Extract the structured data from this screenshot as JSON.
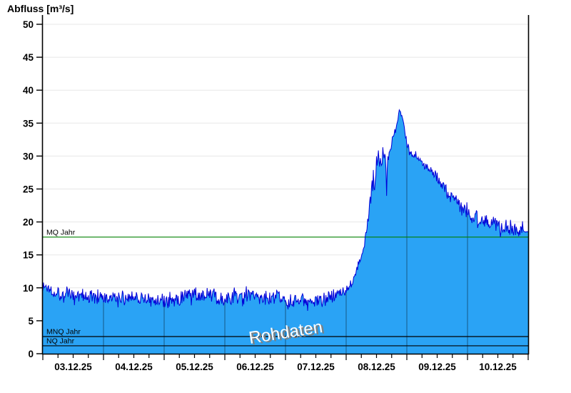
{
  "title": "Abfluss [m³/s]",
  "watermark": "Rohdaten",
  "colors": {
    "background": "#ffffff",
    "area_fill": "#2AA3F5",
    "data_line": "#0000D8",
    "mq_line": "#008000",
    "reference_line": "#000000",
    "grid_horizontal": "#E7E7E7",
    "day_grid_over_area": "rgba(0,0,0,0.45)",
    "axis": "#000000",
    "tick_label": "#000000",
    "watermark_fill": "#FFFFFF",
    "watermark_shadow": "#7E7E7E"
  },
  "chart_data": {
    "type": "area",
    "title": "Abfluss [m³/s]",
    "ylabel": "Abfluss [m³/s]",
    "xlabel": "",
    "ylim": [
      0,
      50
    ],
    "yticks": [
      "0",
      "5",
      "10",
      "15",
      "20",
      "25",
      "30",
      "35",
      "40",
      "45",
      "50"
    ],
    "grid": "horizontal major gridlines on; vertical day boundaries drawn only over filled area",
    "legend": "none",
    "x_day_labels": [
      "03.12.25",
      "04.12.25",
      "05.12.25",
      "06.12.25",
      "07.12.25",
      "08.12.25",
      "09.12.25",
      "10.12.25"
    ],
    "x_range_hours": [
      0,
      192
    ],
    "x_minor_tick_hours": 6,
    "x_major_tick_hours": 24,
    "reference_lines": [
      {
        "label": "MQ Jahr",
        "value": 17.7,
        "color": "#008000"
      },
      {
        "label": "MNQ Jahr",
        "value": 2.6,
        "color": "#000000"
      },
      {
        "label": "NQ Jahr",
        "value": 1.2,
        "color": "#000000"
      }
    ],
    "series": [
      {
        "name": "Rohdaten",
        "unit": "m³/s",
        "sample_minutes": 15,
        "profile_hours_values": [
          [
            0,
            10.2
          ],
          [
            2,
            10.0
          ],
          [
            4,
            9.6
          ],
          [
            6,
            9.3
          ],
          [
            8,
            9.2
          ],
          [
            10,
            9.0
          ],
          [
            12,
            8.8
          ],
          [
            16,
            8.6
          ],
          [
            20,
            8.5
          ],
          [
            24,
            8.3
          ],
          [
            26,
            8.2
          ],
          [
            30,
            8.5
          ],
          [
            34,
            8.8
          ],
          [
            38,
            8.6
          ],
          [
            42,
            8.2
          ],
          [
            46,
            8.0
          ],
          [
            48,
            7.9
          ],
          [
            50,
            7.9
          ],
          [
            54,
            8.3
          ],
          [
            58,
            8.8
          ],
          [
            62,
            8.9
          ],
          [
            66,
            8.6
          ],
          [
            70,
            8.4
          ],
          [
            72,
            8.3
          ],
          [
            74,
            8.4
          ],
          [
            78,
            8.7
          ],
          [
            80,
            8.9
          ],
          [
            84,
            8.6
          ],
          [
            88,
            8.4
          ],
          [
            92,
            8.3
          ],
          [
            96,
            8.2
          ],
          [
            100,
            8.0
          ],
          [
            104,
            7.9
          ],
          [
            108,
            7.9
          ],
          [
            110,
            8.0
          ],
          [
            112,
            8.2
          ],
          [
            114,
            8.5
          ],
          [
            116,
            8.8
          ],
          [
            118,
            9.3
          ],
          [
            120,
            9.9
          ],
          [
            121,
            10.4
          ],
          [
            122,
            11.0
          ],
          [
            123,
            11.8
          ],
          [
            124,
            12.6
          ],
          [
            125,
            13.6
          ],
          [
            126,
            14.8
          ],
          [
            127,
            16.2
          ],
          [
            127.5,
            17.3
          ],
          [
            128,
            18.6
          ],
          [
            128.5,
            20.0
          ],
          [
            129,
            21.5
          ],
          [
            129.5,
            23.0
          ],
          [
            130,
            24.4
          ],
          [
            130.5,
            25.8
          ],
          [
            131,
            27.0
          ],
          [
            131.5,
            27.7
          ],
          [
            132,
            28.3
          ],
          [
            132.5,
            28.9
          ],
          [
            133,
            29.3
          ],
          [
            133.5,
            29.0
          ],
          [
            134,
            29.6
          ],
          [
            134.5,
            30.0
          ],
          [
            135,
            30.2
          ],
          [
            135.5,
            29.6
          ],
          [
            136,
            25.8
          ],
          [
            136.5,
            29.4
          ],
          [
            137,
            30.6
          ],
          [
            137.5,
            31.2
          ],
          [
            138,
            32.4
          ],
          [
            138.5,
            33.4
          ],
          [
            139,
            33.8
          ],
          [
            139.5,
            34.0
          ],
          [
            140,
            34.6
          ],
          [
            140.4,
            35.4
          ],
          [
            140.7,
            36.4
          ],
          [
            141,
            37.1
          ],
          [
            141.4,
            36.5
          ],
          [
            141.8,
            35.9
          ],
          [
            142.2,
            35.8
          ],
          [
            142.6,
            34.7
          ],
          [
            143,
            34.0
          ],
          [
            143.4,
            33.3
          ],
          [
            144,
            32.1
          ],
          [
            145,
            31.1
          ],
          [
            146,
            30.4
          ],
          [
            147,
            30.0
          ],
          [
            148,
            29.6
          ],
          [
            149,
            29.3
          ],
          [
            150,
            29.0
          ],
          [
            151,
            28.6
          ],
          [
            152,
            28.2
          ],
          [
            153,
            27.8
          ],
          [
            154,
            27.3
          ],
          [
            155,
            26.9
          ],
          [
            156,
            26.4
          ],
          [
            157,
            26.0
          ],
          [
            158,
            25.6
          ],
          [
            159,
            25.2
          ],
          [
            160,
            24.8
          ],
          [
            161,
            24.3
          ],
          [
            162,
            23.9
          ],
          [
            163,
            23.5
          ],
          [
            164,
            23.1
          ],
          [
            165,
            22.6
          ],
          [
            166,
            22.2
          ],
          [
            167,
            21.8
          ],
          [
            168,
            21.4
          ],
          [
            170,
            21.0
          ],
          [
            172,
            20.7
          ],
          [
            174,
            20.4
          ],
          [
            176,
            20.1
          ],
          [
            178,
            19.9
          ],
          [
            180,
            19.7
          ],
          [
            182,
            19.5
          ],
          [
            184,
            19.3
          ],
          [
            186,
            19.1
          ],
          [
            188,
            18.9
          ],
          [
            189,
            18.8
          ],
          [
            190,
            18.6
          ],
          [
            190.3,
            18.5
          ],
          [
            191,
            18.5
          ],
          [
            192,
            18.5
          ]
        ],
        "noise": {
          "seed": 1337,
          "spike_probability": 0.18,
          "spike_gain": 1.6,
          "amplitude_anchors": [
            [
              0,
              1.0
            ],
            [
              96,
              1.0
            ],
            [
              110,
              1.0
            ],
            [
              114,
              0.85
            ],
            [
              118,
              0.7
            ],
            [
              124,
              0.55
            ],
            [
              127,
              0.5
            ],
            [
              128.5,
              0.6
            ],
            [
              129.5,
              1.0
            ],
            [
              130,
              1.6
            ],
            [
              131,
              2.0
            ],
            [
              132,
              1.9
            ],
            [
              133,
              1.8
            ],
            [
              134,
              1.6
            ],
            [
              135,
              1.5
            ],
            [
              136,
              1.2
            ],
            [
              137,
              1.0
            ],
            [
              138,
              0.8
            ],
            [
              139,
              0.6
            ],
            [
              140,
              0.5
            ],
            [
              141,
              0.45
            ],
            [
              142,
              0.5
            ],
            [
              143,
              0.55
            ],
            [
              144,
              0.65
            ],
            [
              148,
              0.6
            ],
            [
              152,
              0.6
            ],
            [
              156,
              0.7
            ],
            [
              160,
              0.8
            ],
            [
              164,
              0.9
            ],
            [
              168,
              1.0
            ],
            [
              172,
              1.1
            ],
            [
              176,
              1.15
            ],
            [
              180,
              1.2
            ],
            [
              184,
              1.15
            ],
            [
              188,
              1.05
            ],
            [
              189.9,
              1.0
            ],
            [
              190.2,
              0.08
            ],
            [
              192,
              0.05
            ]
          ]
        }
      }
    ]
  }
}
